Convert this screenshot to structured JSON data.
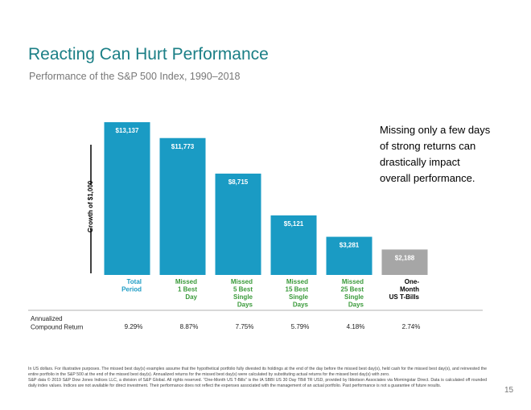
{
  "chart_data": {
    "type": "bar",
    "title": "Reacting Can Hurt Performance",
    "subtitle": "Performance of the S&P 500 Index, 1990–2018",
    "y_label": "Growth of $1,000",
    "categories": [
      [
        "Total",
        "Period"
      ],
      [
        "Missed",
        "1 Best",
        "Day"
      ],
      [
        "Missed",
        "5 Best",
        "Single",
        "Days"
      ],
      [
        "Missed",
        "15 Best",
        "Single",
        "Days"
      ],
      [
        "Missed",
        "25 Best",
        "Single",
        "Days"
      ],
      [
        "One-",
        "Month",
        "US T-Bills"
      ]
    ],
    "category_colors": [
      "#1a9bc4",
      "#3a9a3a",
      "#3a9a3a",
      "#3a9a3a",
      "#3a9a3a",
      "#000000"
    ],
    "values": [
      13137,
      11773,
      8715,
      5121,
      3281,
      2188
    ],
    "value_labels": [
      "$13,137",
      "$11,773",
      "$8,715",
      "$5,121",
      "$3,281",
      "$2,188"
    ],
    "colors": [
      "#1a9bc4",
      "#1a9bc4",
      "#1a9bc4",
      "#1a9bc4",
      "#1a9bc4",
      "#a6a6a6"
    ],
    "annotation": [
      "Missing only a few days",
      "of strong returns can",
      "drastically impact",
      "overall performance."
    ],
    "returns": {
      "label": [
        "Annualized",
        "Compound Return"
      ],
      "values": [
        9.29,
        8.87,
        7.75,
        5.79,
        4.18,
        2.74
      ],
      "value_labels": [
        "9.29%",
        "8.87%",
        "7.75%",
        "5.79%",
        "4.18%",
        "2.74%"
      ]
    }
  },
  "footnotes": [
    "In US dollars. For illustrative purposes. The missed best day(s) examples assume that the hypothetical portfolio fully divested its holdings at the end of the day before the missed best day(s), held cash for the missed best day(s), and reinvested the entire portfolio in the S&P 500 at the end of the missed best day(s). Annualized returns for the missed best day(s) were calculated by substituting actual returns for the missed best day(s) with zero.",
    "S&P data © 2019 S&P Dow Jones Indices LLC, a division of S&P Global. All rights reserved. “One-Month US T-Bills” is the IA SBBI US 30 Day TBill TR USD, provided by Ibbotson Associates via Morningstar Direct. Data is calculated off rounded daily index values. Indices are not available for direct investment. Their performance does not reflect the expenses associated with the management of an actual portfolio. Past performance is not a guarantee of future results."
  ],
  "page_number": "15"
}
